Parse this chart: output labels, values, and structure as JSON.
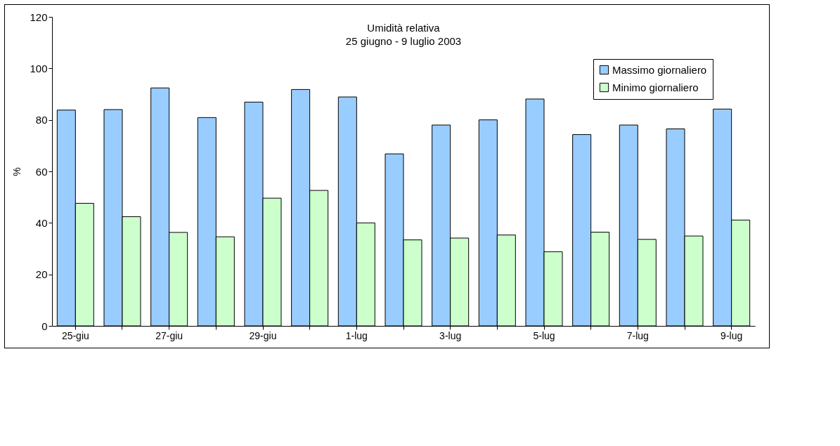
{
  "chart_data": {
    "type": "bar",
    "title": "Umidità relativa",
    "subtitle": "25 giugno - 9 luglio 2003",
    "ylabel": "%",
    "categories": [
      "25-giu",
      null,
      "27-giu",
      null,
      "29-giu",
      null,
      "1-lug",
      null,
      "3-lug",
      null,
      "5-lug",
      null,
      "7-lug",
      null,
      "9-lug"
    ],
    "series": [
      {
        "name": "Massimo giornaliero",
        "color": "#99ccff",
        "values": [
          83.8,
          84.0,
          92.4,
          80.9,
          86.9,
          91.8,
          88.9,
          66.8,
          78.0,
          80.0,
          88.1,
          74.3,
          78.0,
          76.5,
          84.2
        ]
      },
      {
        "name": "Minimo giornaliero",
        "color": "#ccffcc",
        "values": [
          47.6,
          42.4,
          36.3,
          34.6,
          49.6,
          52.6,
          40.0,
          33.4,
          34.1,
          35.3,
          28.8,
          36.4,
          33.6,
          34.9,
          41.1
        ]
      }
    ],
    "ylim": [
      0,
      120
    ],
    "yticks": [
      0,
      20,
      40,
      60,
      80,
      100,
      120
    ],
    "grid": false,
    "legend": "top right"
  }
}
